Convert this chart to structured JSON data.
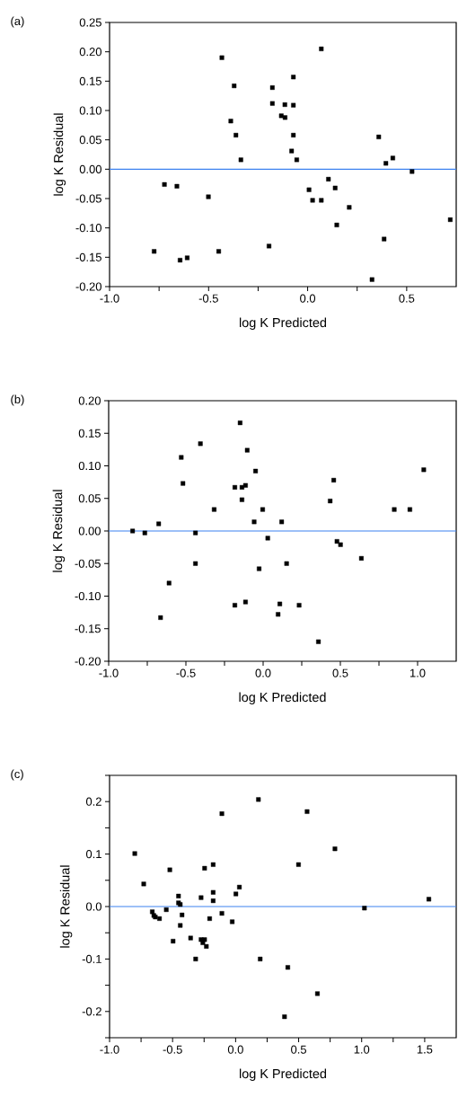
{
  "chart_data": [
    {
      "type": "scatter",
      "xlabel": "log K Predicted",
      "ylabel": "log K Residual",
      "annotations": [
        "(a)"
      ],
      "color": "#000000",
      "marker": "square",
      "x": [
        -0.775,
        -0.723,
        -0.66,
        -0.644,
        -0.608,
        -0.501,
        -0.449,
        -0.433,
        -0.388,
        -0.371,
        -0.362,
        -0.337,
        -0.195,
        -0.178,
        -0.178,
        -0.133,
        -0.115,
        -0.114,
        -0.072,
        -0.072,
        -0.072,
        -0.081,
        -0.055,
        0.069,
        0.007,
        0.025,
        0.069,
        0.105,
        0.139,
        0.147,
        0.21,
        0.325,
        0.359,
        0.386,
        0.395,
        0.43,
        0.527,
        0.72
      ],
      "values": [
        -0.14,
        -0.026,
        -0.029,
        -0.155,
        -0.151,
        -0.047,
        -0.14,
        0.19,
        0.082,
        0.142,
        0.058,
        0.016,
        -0.131,
        0.139,
        0.112,
        0.091,
        0.11,
        0.088,
        0.157,
        0.109,
        0.058,
        0.031,
        0.016,
        0.205,
        -0.035,
        -0.053,
        -0.053,
        -0.017,
        -0.032,
        -0.095,
        -0.065,
        -0.188,
        0.055,
        -0.119,
        0.01,
        0.019,
        -0.004,
        -0.086
      ],
      "xlim": [
        -1.0,
        0.75
      ],
      "ylim": [
        -0.2,
        0.25
      ],
      "xticks": [
        {
          "value": -1.0,
          "label": "-1.0"
        },
        {
          "value": -0.75,
          "label": null
        },
        {
          "value": -0.5,
          "label": "-0.5"
        },
        {
          "value": -0.25,
          "label": null
        },
        {
          "value": 0.0,
          "label": "0.0"
        },
        {
          "value": 0.25,
          "label": null
        },
        {
          "value": 0.5,
          "label": "0.5"
        }
      ],
      "yticks": [
        {
          "value": -0.2,
          "label": "-0.20"
        },
        {
          "value": -0.15,
          "label": "-0.15"
        },
        {
          "value": -0.1,
          "label": "-0.10"
        },
        {
          "value": -0.05,
          "label": "-0.05"
        },
        {
          "value": 0.0,
          "label": "0.00"
        },
        {
          "value": 0.05,
          "label": "0.05"
        },
        {
          "value": 0.1,
          "label": "0.10"
        },
        {
          "value": 0.15,
          "label": "0.15"
        },
        {
          "value": 0.2,
          "label": "0.20"
        },
        {
          "value": 0.25,
          "label": "0.25"
        }
      ],
      "ref_lines": [
        {
          "axis": "y",
          "value": 0,
          "color": "#3c82f0"
        }
      ]
    },
    {
      "type": "scatter",
      "xlabel": "log K Predicted",
      "ylabel": "log K Residual",
      "annotations": [
        "(b)"
      ],
      "color": "#000000",
      "marker": "square",
      "x": [
        -0.845,
        -0.766,
        -0.676,
        -0.664,
        -0.609,
        -0.53,
        -0.519,
        -0.438,
        -0.438,
        -0.406,
        -0.317,
        -0.183,
        -0.183,
        -0.149,
        -0.137,
        -0.137,
        -0.114,
        -0.114,
        -0.103,
        -0.058,
        -0.049,
        -0.026,
        -0.003,
        0.03,
        0.097,
        0.108,
        0.12,
        0.152,
        0.233,
        0.358,
        0.434,
        0.457,
        0.478,
        0.501,
        0.636,
        0.849,
        0.95,
        1.04
      ],
      "values": [
        0.0,
        -0.003,
        0.011,
        -0.133,
        -0.08,
        0.113,
        0.073,
        -0.003,
        -0.05,
        0.134,
        0.033,
        0.067,
        -0.114,
        0.166,
        0.067,
        0.048,
        0.07,
        -0.109,
        0.124,
        0.014,
        0.092,
        -0.058,
        0.033,
        -0.011,
        -0.128,
        -0.112,
        0.014,
        -0.05,
        -0.114,
        -0.17,
        0.046,
        0.078,
        -0.016,
        -0.021,
        -0.042,
        0.033,
        0.033,
        0.094
      ],
      "xlim": [
        -1.0,
        1.25
      ],
      "ylim": [
        -0.2,
        0.2
      ],
      "xticks": [
        {
          "value": -1.0,
          "label": "-1.0"
        },
        {
          "value": -0.75,
          "label": null
        },
        {
          "value": -0.5,
          "label": "-0.5"
        },
        {
          "value": -0.25,
          "label": null
        },
        {
          "value": 0.0,
          "label": "0.0"
        },
        {
          "value": 0.25,
          "label": null
        },
        {
          "value": 0.5,
          "label": "0.5"
        },
        {
          "value": 0.75,
          "label": null
        },
        {
          "value": 1.0,
          "label": "1.0"
        }
      ],
      "yticks": [
        {
          "value": -0.2,
          "label": "-0.20"
        },
        {
          "value": -0.15,
          "label": "-0.15"
        },
        {
          "value": -0.1,
          "label": "-0.10"
        },
        {
          "value": -0.05,
          "label": "-0.05"
        },
        {
          "value": 0.0,
          "label": "0.00"
        },
        {
          "value": 0.05,
          "label": "0.05"
        },
        {
          "value": 0.1,
          "label": "0.10"
        },
        {
          "value": 0.15,
          "label": "0.15"
        },
        {
          "value": 0.2,
          "label": "0.20"
        }
      ],
      "ref_lines": [
        {
          "axis": "y",
          "value": 0,
          "color": "#3c82f0"
        }
      ]
    },
    {
      "type": "scatter",
      "xlabel": "log K Predicted",
      "ylabel": "log K Residual",
      "annotations": [
        "(c)"
      ],
      "color": "#000000",
      "marker": "square",
      "x": [
        -0.8,
        -0.729,
        -0.661,
        -0.649,
        -0.637,
        -0.604,
        -0.55,
        -0.522,
        -0.496,
        -0.453,
        -0.453,
        -0.439,
        -0.439,
        -0.425,
        -0.357,
        -0.317,
        -0.274,
        -0.274,
        -0.26,
        -0.246,
        -0.246,
        -0.232,
        -0.206,
        -0.178,
        -0.178,
        -0.178,
        -0.109,
        -0.109,
        -0.027,
        0.002,
        0.03,
        0.181,
        0.195,
        0.388,
        0.414,
        0.499,
        0.567,
        0.649,
        0.788,
        1.022,
        1.533
      ],
      "values": [
        0.101,
        0.043,
        -0.01,
        -0.017,
        -0.02,
        -0.023,
        -0.006,
        0.07,
        -0.066,
        0.02,
        0.007,
        0.004,
        -0.036,
        -0.016,
        -0.06,
        -0.1,
        0.017,
        -0.063,
        -0.069,
        -0.063,
        0.073,
        -0.076,
        -0.023,
        0.08,
        0.027,
        0.011,
        0.177,
        -0.013,
        -0.029,
        0.024,
        0.037,
        0.204,
        -0.1,
        -0.21,
        -0.116,
        0.08,
        0.181,
        -0.166,
        0.11,
        -0.003,
        0.014
      ],
      "xlim": [
        -1.0,
        1.75
      ],
      "ylim": [
        -0.25,
        0.25
      ],
      "xticks": [
        {
          "value": -1.0,
          "label": "-1.0"
        },
        {
          "value": -0.75,
          "label": null
        },
        {
          "value": -0.5,
          "label": "-0.5"
        },
        {
          "value": -0.25,
          "label": null
        },
        {
          "value": 0.0,
          "label": "0.0"
        },
        {
          "value": 0.25,
          "label": null
        },
        {
          "value": 0.5,
          "label": "0.5"
        },
        {
          "value": 0.75,
          "label": null
        },
        {
          "value": 1.0,
          "label": "1.0"
        },
        {
          "value": 1.25,
          "label": null
        },
        {
          "value": 1.5,
          "label": "1.5"
        }
      ],
      "yticks": [
        {
          "value": -0.25,
          "label": null
        },
        {
          "value": -0.2,
          "label": "-0.2"
        },
        {
          "value": -0.15,
          "label": null
        },
        {
          "value": -0.1,
          "label": "-0.1"
        },
        {
          "value": -0.05,
          "label": null
        },
        {
          "value": 0.0,
          "label": "0.0"
        },
        {
          "value": 0.05,
          "label": null
        },
        {
          "value": 0.1,
          "label": "0.1"
        },
        {
          "value": 0.15,
          "label": null
        },
        {
          "value": 0.2,
          "label": "0.2"
        },
        {
          "value": 0.25,
          "label": null
        }
      ],
      "ref_lines": [
        {
          "axis": "y",
          "value": 0,
          "color": "#3c82f0"
        }
      ]
    }
  ]
}
